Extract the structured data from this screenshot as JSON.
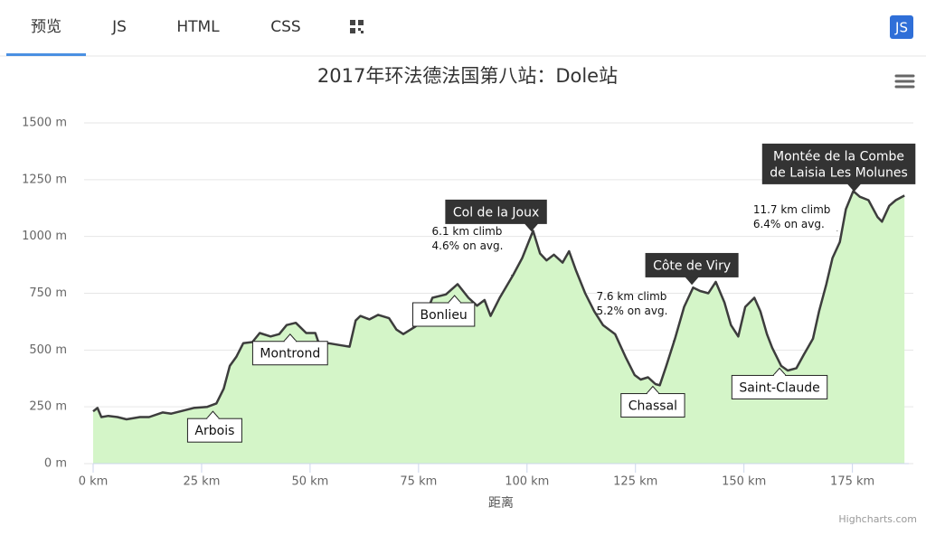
{
  "tabs": [
    "预览",
    "JS",
    "HTML",
    "CSS"
  ],
  "badge": "JS",
  "chart_data": {
    "type": "area",
    "title": "2017年环法德法国第八站：Dole站",
    "x_label": "距离",
    "credits": "Highcharts.com",
    "color": "#3d3d3d",
    "fillColor": "#d4f5c8",
    "grid": true,
    "xlim": [
      0,
      188
    ],
    "ylim": [
      0,
      1500
    ],
    "xticks": [
      {
        "value": 0,
        "label": "0 km"
      },
      {
        "value": 25,
        "label": "25 km"
      },
      {
        "value": 50,
        "label": "50 km"
      },
      {
        "value": 75,
        "label": "75 km"
      },
      {
        "value": 100,
        "label": "100 km"
      },
      {
        "value": 125,
        "label": "125 km"
      },
      {
        "value": 150,
        "label": "150 km"
      },
      {
        "value": 175,
        "label": "175 km"
      }
    ],
    "yticks": [
      {
        "value": 0,
        "label": "0 m"
      },
      {
        "value": 250,
        "label": "250 m"
      },
      {
        "value": 500,
        "label": "500 m"
      },
      {
        "value": 750,
        "label": "750 m"
      },
      {
        "value": 1000,
        "label": "1000 m"
      },
      {
        "value": 1250,
        "label": "1250 m"
      },
      {
        "value": 1500,
        "label": "1500 m"
      }
    ],
    "x": [
      0,
      1.0,
      1.9,
      3.5,
      5.6,
      7.7,
      10.8,
      12.9,
      16.0,
      18.0,
      20.1,
      23.2,
      26.3,
      28.4,
      30.1,
      31.5,
      33.0,
      34.6,
      36.7,
      38.4,
      40.9,
      42.9,
      44.6,
      46.7,
      49.1,
      51.2,
      52.2,
      54.3,
      57.4,
      59.1,
      60.5,
      61.6,
      63.7,
      65.7,
      68.2,
      69.9,
      71.5,
      74.0,
      76.1,
      78.2,
      81.3,
      84.0,
      86.5,
      88.5,
      90.2,
      91.6,
      93.7,
      96.8,
      98.9,
      101.4,
      103.0,
      104.5,
      106.2,
      108.2,
      109.7,
      111.3,
      113.4,
      115.5,
      117.5,
      120.3,
      122.7,
      124.8,
      126.2,
      127.9,
      129.6,
      130.6,
      132.1,
      134.1,
      136.2,
      138.3,
      139.9,
      141.8,
      143.5,
      145.5,
      147.0,
      148.7,
      150.3,
      152.4,
      153.8,
      155.3,
      156.5,
      158.6,
      160.1,
      162.1,
      163.8,
      165.9,
      167.3,
      169.0,
      170.4,
      172.1,
      173.5,
      175.2,
      176.7,
      178.7,
      180.8,
      181.8,
      183.5,
      185.0,
      187.0
    ],
    "values": [
      230,
      245,
      205,
      210,
      205,
      195,
      205,
      205,
      225,
      220,
      230,
      245,
      250,
      265,
      330,
      430,
      470,
      530,
      535,
      575,
      560,
      570,
      610,
      620,
      575,
      575,
      520,
      530,
      520,
      515,
      630,
      650,
      635,
      655,
      640,
      590,
      570,
      600,
      630,
      730,
      745,
      790,
      730,
      695,
      720,
      650,
      730,
      830,
      905,
      1025,
      925,
      895,
      920,
      885,
      935,
      850,
      750,
      670,
      610,
      570,
      470,
      390,
      370,
      380,
      350,
      345,
      430,
      550,
      690,
      775,
      760,
      750,
      800,
      710,
      610,
      560,
      690,
      730,
      670,
      570,
      510,
      430,
      410,
      420,
      480,
      550,
      670,
      790,
      905,
      975,
      1120,
      1200,
      1175,
      1160,
      1085,
      1065,
      1135,
      1160,
      1180
    ],
    "annotations": [
      {
        "text": [
          "Arbois"
        ],
        "x": 27.6,
        "y": 230
      },
      {
        "text": [
          "Montrond"
        ],
        "x": 45.4,
        "y": 570
      },
      {
        "text": [
          "Bonlieu"
        ],
        "x": 83.3,
        "y": 740
      },
      {
        "text": [
          "Col de la Joux"
        ],
        "x": 101.0,
        "y": 1025
      },
      {
        "text": [
          "Côte de Viry"
        ],
        "x": 138.0,
        "y": 790
      },
      {
        "text": [
          "Chassal"
        ],
        "x": 129.0,
        "y": 340
      },
      {
        "text": [
          "Saint-Claude"
        ],
        "x": 158.2,
        "y": 420
      },
      {
        "text": [
          "Montée de la Combe",
          "de Laisia Les Molunes"
        ],
        "x": 175.4,
        "y": 1200
      }
    ],
    "notes": [
      {
        "text": [
          "6.1 km climb",
          "4.6% on avg."
        ],
        "x": 96.4,
        "y": 830
      },
      {
        "text": [
          "7.6 km climb",
          "5.2% on avg."
        ],
        "x": 133.7,
        "y": 540
      },
      {
        "text": [
          "11.7 km climb",
          "6.4% on avg."
        ],
        "x": 171.5,
        "y": 1025
      }
    ]
  }
}
